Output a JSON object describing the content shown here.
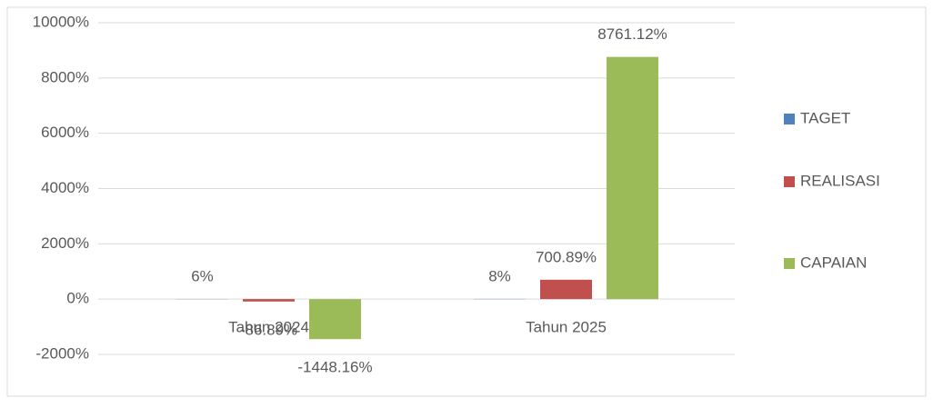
{
  "chart_data": {
    "type": "bar",
    "categories": [
      "Tahun 2024",
      "Tahun 2025"
    ],
    "series": [
      {
        "name": "TAGET",
        "color": "#4f81bd",
        "values": [
          6,
          8
        ],
        "value_labels": [
          "6%",
          "8%"
        ]
      },
      {
        "name": "REALISASI",
        "color": "#c0504d",
        "values": [
          -86.89,
          700.89
        ],
        "value_labels": [
          "-86.89%",
          "700.89%"
        ]
      },
      {
        "name": "CAPAIAN",
        "color": "#9bbb59",
        "values": [
          -1448.16,
          8761.12
        ],
        "value_labels": [
          "-1448.16%",
          "8761.12%"
        ]
      }
    ],
    "ylim": [
      -2000,
      10000
    ],
    "yticks": [
      {
        "value": -2000,
        "label": "-2000%"
      },
      {
        "value": 0,
        "label": "0%"
      },
      {
        "value": 2000,
        "label": "2000%"
      },
      {
        "value": 4000,
        "label": "4000%"
      },
      {
        "value": 6000,
        "label": "6000%"
      },
      {
        "value": 8000,
        "label": "8000%"
      },
      {
        "value": 10000,
        "label": "10000%"
      }
    ],
    "grid": true,
    "legend": "right"
  }
}
